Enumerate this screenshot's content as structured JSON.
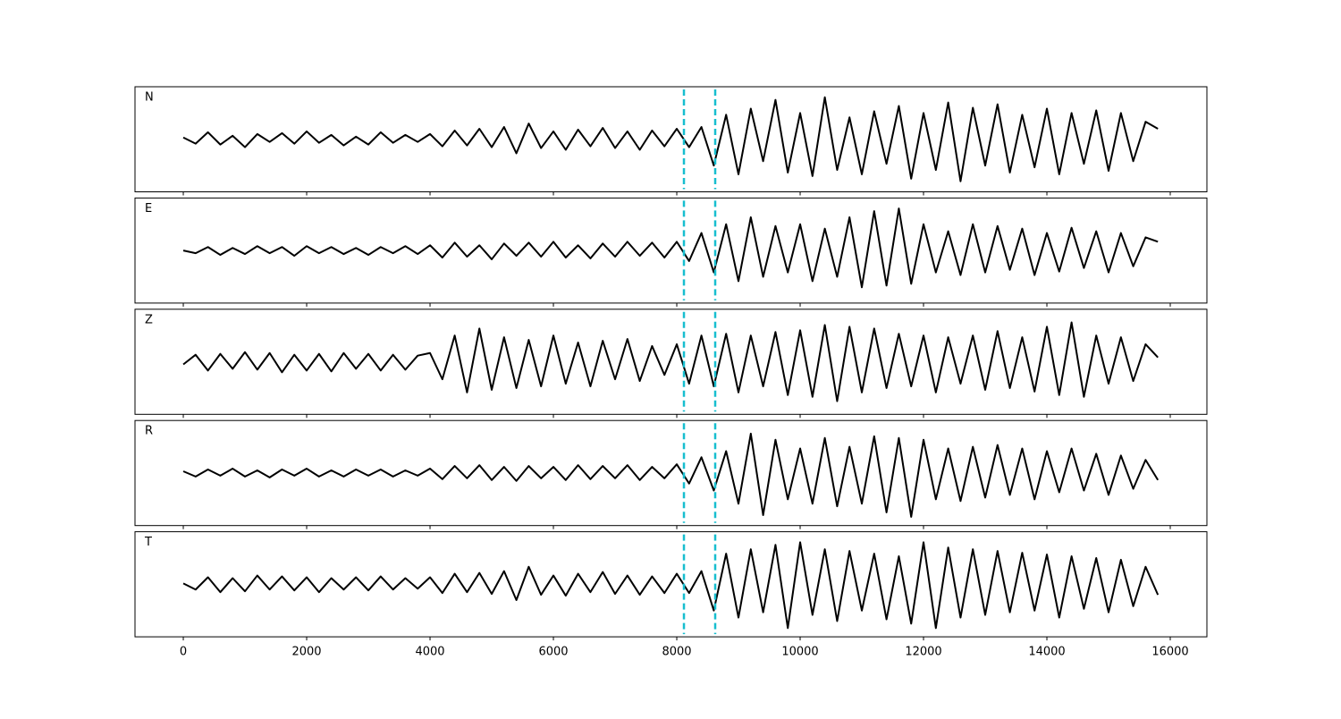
{
  "chart_data": {
    "type": "line",
    "x": [
      0,
      200,
      400,
      600,
      800,
      1000,
      1200,
      1400,
      1600,
      1800,
      2000,
      2200,
      2400,
      2600,
      2800,
      3000,
      3200,
      3400,
      3600,
      3800,
      4000,
      4200,
      4400,
      4600,
      4800,
      5000,
      5200,
      5400,
      5600,
      5800,
      6000,
      6200,
      6400,
      6600,
      6800,
      7000,
      7200,
      7400,
      7600,
      7800,
      8000,
      8200,
      8400,
      8600,
      8800,
      9000,
      9200,
      9400,
      9600,
      9800,
      10000,
      10200,
      10400,
      10600,
      10800,
      11000,
      11200,
      11400,
      11600,
      11800,
      12000,
      12200,
      12400,
      12600,
      12800,
      13000,
      13200,
      13400,
      13600,
      13800,
      14000,
      14200,
      14400,
      14600,
      14800,
      15000,
      15200,
      15400,
      15600,
      15800
    ],
    "series": [
      {
        "name": "N",
        "color": "#000000",
        "values": [
          2,
          -5,
          8,
          -6,
          4,
          -9,
          6,
          -3,
          7,
          -5,
          9,
          -4,
          5,
          -7,
          3,
          -6,
          8,
          -4,
          5,
          -3,
          6,
          -8,
          10,
          -7,
          12,
          -9,
          14,
          -16,
          18,
          -10,
          9,
          -12,
          11,
          -8,
          13,
          -10,
          9,
          -12,
          10,
          -8,
          12,
          -9,
          14,
          -30,
          28,
          -40,
          35,
          -25,
          45,
          -38,
          30,
          -42,
          48,
          -35,
          25,
          -40,
          32,
          -28,
          38,
          -45,
          30,
          -35,
          42,
          -48,
          36,
          -30,
          40,
          -38,
          28,
          -32,
          35,
          -40,
          30,
          -28,
          33,
          -36,
          30,
          -25,
          20,
          12
        ]
      },
      {
        "name": "E",
        "color": "#000000",
        "values": [
          0,
          -3,
          4,
          -5,
          3,
          -4,
          5,
          -3,
          4,
          -6,
          5,
          -3,
          4,
          -4,
          3,
          -5,
          4,
          -3,
          5,
          -4,
          6,
          -8,
          9,
          -7,
          6,
          -10,
          8,
          -6,
          9,
          -7,
          10,
          -8,
          6,
          -9,
          8,
          -7,
          10,
          -6,
          9,
          -8,
          10,
          -12,
          20,
          -25,
          30,
          -35,
          38,
          -30,
          28,
          -25,
          30,
          -35,
          25,
          -30,
          38,
          -42,
          45,
          -40,
          48,
          -38,
          30,
          -25,
          22,
          -28,
          30,
          -25,
          28,
          -22,
          25,
          -28,
          20,
          -24,
          26,
          -20,
          22,
          -25,
          20,
          -18,
          15,
          10
        ]
      },
      {
        "name": "Z",
        "color": "#000000",
        "values": [
          -3,
          8,
          -10,
          9,
          -8,
          11,
          -9,
          10,
          -12,
          8,
          -10,
          9,
          -11,
          10,
          -8,
          9,
          -10,
          8,
          -9,
          7,
          10,
          -20,
          30,
          -35,
          38,
          -32,
          28,
          -30,
          25,
          -28,
          30,
          -25,
          22,
          -28,
          24,
          -20,
          26,
          -22,
          18,
          -15,
          20,
          -25,
          30,
          -28,
          32,
          -35,
          30,
          -28,
          34,
          -38,
          36,
          -40,
          42,
          -45,
          40,
          -35,
          38,
          -30,
          32,
          -28,
          30,
          -35,
          28,
          -25,
          30,
          -32,
          35,
          -30,
          28,
          -34,
          40,
          -38,
          45,
          -40,
          30,
          -25,
          28,
          -22,
          20,
          5
        ]
      },
      {
        "name": "R",
        "color": "#000000",
        "values": [
          2,
          -4,
          4,
          -3,
          5,
          -4,
          3,
          -5,
          4,
          -3,
          5,
          -4,
          3,
          -4,
          4,
          -3,
          4,
          -4,
          3,
          -3,
          5,
          -7,
          8,
          -6,
          9,
          -8,
          7,
          -9,
          8,
          -6,
          7,
          -8,
          9,
          -7,
          8,
          -6,
          9,
          -8,
          7,
          -6,
          10,
          -12,
          18,
          -20,
          25,
          -35,
          45,
          -48,
          38,
          -30,
          28,
          -35,
          40,
          -38,
          30,
          -35,
          42,
          -45,
          40,
          -50,
          38,
          -30,
          28,
          -32,
          30,
          -28,
          32,
          -25,
          28,
          -30,
          25,
          -22,
          28,
          -20,
          22,
          -25,
          20,
          -18,
          15,
          -8
        ]
      },
      {
        "name": "T",
        "color": "#000000",
        "values": [
          1,
          -6,
          8,
          -9,
          7,
          -8,
          10,
          -6,
          9,
          -7,
          8,
          -9,
          7,
          -6,
          8,
          -7,
          9,
          -6,
          7,
          -5,
          8,
          -10,
          12,
          -9,
          13,
          -11,
          15,
          -18,
          20,
          -12,
          10,
          -13,
          12,
          -9,
          14,
          -11,
          10,
          -12,
          9,
          -10,
          12,
          -10,
          15,
          -30,
          35,
          -38,
          40,
          -32,
          45,
          -50,
          48,
          -35,
          40,
          -42,
          38,
          -30,
          35,
          -40,
          32,
          -45,
          48,
          -50,
          42,
          -38,
          40,
          -35,
          38,
          -32,
          36,
          -30,
          34,
          -38,
          32,
          -28,
          30,
          -32,
          28,
          -25,
          20,
          -12
        ]
      }
    ],
    "xlim": [
      -783,
      16594
    ],
    "xticks": [
      0,
      2000,
      4000,
      6000,
      8000,
      10000,
      12000,
      14000,
      16000
    ],
    "ylim": [
      -60,
      60
    ],
    "vlines": [
      8116,
      8623
    ],
    "vline_color": "#17becf"
  }
}
